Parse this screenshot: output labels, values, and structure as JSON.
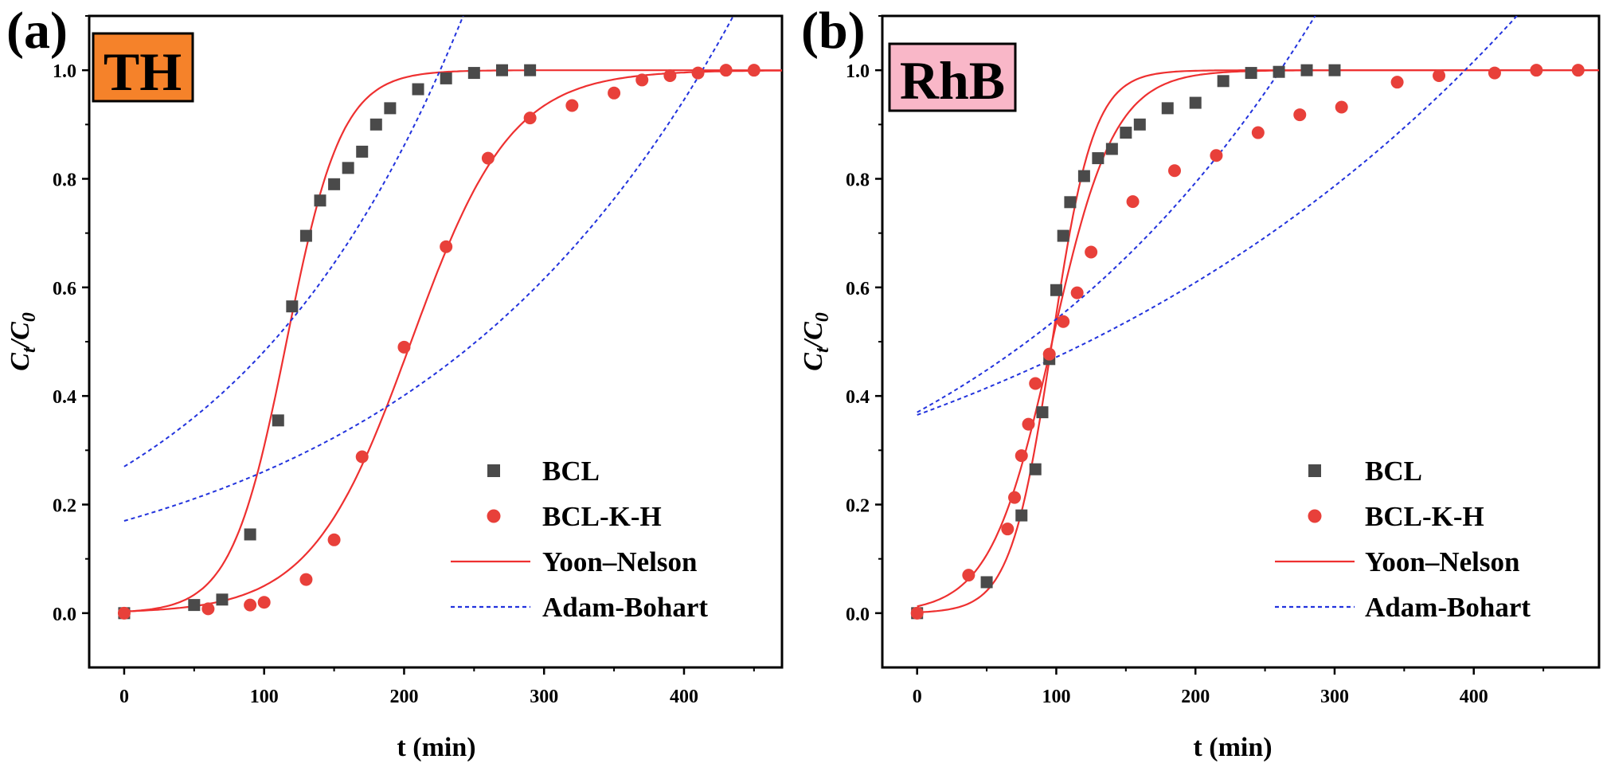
{
  "figure": {
    "panels": [
      {
        "letter": "(a)",
        "tag": "TH",
        "tag_color": "#f5822a"
      },
      {
        "letter": "(b)",
        "tag": "RhB",
        "tag_color": "#f9b7c8"
      }
    ]
  },
  "chart_data": [
    {
      "type": "scatter",
      "xlabel": "t (min)",
      "ylabel_main": "C",
      "ylabel_sub1": "t",
      "ylabel_mid": "/C",
      "ylabel_sub2": "0",
      "xlim": [
        -25,
        470
      ],
      "ylim": [
        -0.1,
        1.1
      ],
      "xticks": [
        0,
        100,
        200,
        300,
        400
      ],
      "yticks": [
        0.0,
        0.2,
        0.4,
        0.6,
        0.8,
        1.0
      ],
      "ytick_labels": [
        "0.0",
        "0.2",
        "0.4",
        "0.6",
        "0.8",
        "1.0"
      ],
      "grid": false,
      "legend_position": "bottom-right",
      "series": [
        {
          "name": "BCL",
          "kind": "marker-square",
          "color": "#4a4a4a",
          "x": [
            0,
            50,
            70,
            90,
            110,
            120,
            130,
            140,
            150,
            160,
            170,
            180,
            190,
            210,
            230,
            250,
            270,
            290
          ],
          "y": [
            0.0,
            0.015,
            0.025,
            0.145,
            0.355,
            0.565,
            0.695,
            0.76,
            0.79,
            0.82,
            0.85,
            0.9,
            0.93,
            0.965,
            0.985,
            0.995,
            1.0,
            1.0
          ]
        },
        {
          "name": "BCL-K-H",
          "kind": "marker-circle",
          "color": "#e8403a",
          "x": [
            0,
            60,
            90,
            100,
            130,
            150,
            170,
            200,
            230,
            260,
            290,
            320,
            350,
            370,
            390,
            410,
            430,
            450
          ],
          "y": [
            0.0,
            0.008,
            0.015,
            0.02,
            0.062,
            0.135,
            0.288,
            0.49,
            0.675,
            0.838,
            0.912,
            0.935,
            0.958,
            0.982,
            0.99,
            0.995,
            1.0,
            1.0
          ]
        },
        {
          "name": "Yoon–Nelson",
          "kind": "line-solid",
          "color": "#ee3030",
          "curves": [
            {
              "k": 0.0508,
              "tau": 116
            },
            {
              "k": 0.028,
              "tau": 205
            }
          ]
        },
        {
          "name": "Adam-Bohart",
          "kind": "line-dashed",
          "color": "#2233dd",
          "curves": [
            {
              "a": 0.27,
              "b": 0.0058
            },
            {
              "a": 0.17,
              "b": 0.00429
            }
          ]
        }
      ]
    },
    {
      "type": "scatter",
      "xlabel": "t (min)",
      "ylabel_main": "C",
      "ylabel_sub1": "t",
      "ylabel_mid": "/C",
      "ylabel_sub2": "0",
      "xlim": [
        -25,
        490
      ],
      "ylim": [
        -0.1,
        1.1
      ],
      "xticks": [
        0,
        100,
        200,
        300,
        400
      ],
      "yticks": [
        0.0,
        0.2,
        0.4,
        0.6,
        0.8,
        1.0
      ],
      "ytick_labels": [
        "0.0",
        "0.2",
        "0.4",
        "0.6",
        "0.8",
        "1.0"
      ],
      "grid": false,
      "legend_position": "bottom-right",
      "series": [
        {
          "name": "BCL",
          "kind": "marker-square",
          "color": "#4a4a4a",
          "x": [
            0,
            50,
            75,
            85,
            90,
            95,
            100,
            105,
            110,
            120,
            130,
            140,
            150,
            160,
            180,
            200,
            220,
            240,
            260,
            280,
            300
          ],
          "y": [
            0.0,
            0.057,
            0.18,
            0.265,
            0.37,
            0.468,
            0.595,
            0.695,
            0.757,
            0.805,
            0.838,
            0.855,
            0.885,
            0.9,
            0.93,
            0.94,
            0.98,
            0.995,
            0.997,
            1.0,
            1.0
          ]
        },
        {
          "name": "BCL-K-H",
          "kind": "marker-circle",
          "color": "#e8403a",
          "x": [
            0,
            37,
            65,
            70,
            75,
            80,
            85,
            95,
            105,
            115,
            125,
            155,
            185,
            215,
            245,
            275,
            305,
            345,
            375,
            415,
            445,
            475
          ],
          "y": [
            0.0,
            0.07,
            0.155,
            0.213,
            0.29,
            0.348,
            0.423,
            0.477,
            0.537,
            0.59,
            0.665,
            0.758,
            0.815,
            0.843,
            0.885,
            0.918,
            0.932,
            0.978,
            0.99,
            0.995,
            1.0,
            1.0
          ]
        },
        {
          "name": "Yoon–Nelson",
          "kind": "line-solid",
          "color": "#ee3030",
          "curves": [
            {
              "k": 0.067,
              "tau": 97
            },
            {
              "k": 0.045,
              "tau": 97
            }
          ]
        },
        {
          "name": "Adam-Bohart",
          "kind": "line-dashed",
          "color": "#2233dd",
          "curves": [
            {
              "a": 0.37,
              "b": 0.00381
            },
            {
              "a": 0.365,
              "b": 0.00256
            }
          ]
        }
      ]
    }
  ]
}
